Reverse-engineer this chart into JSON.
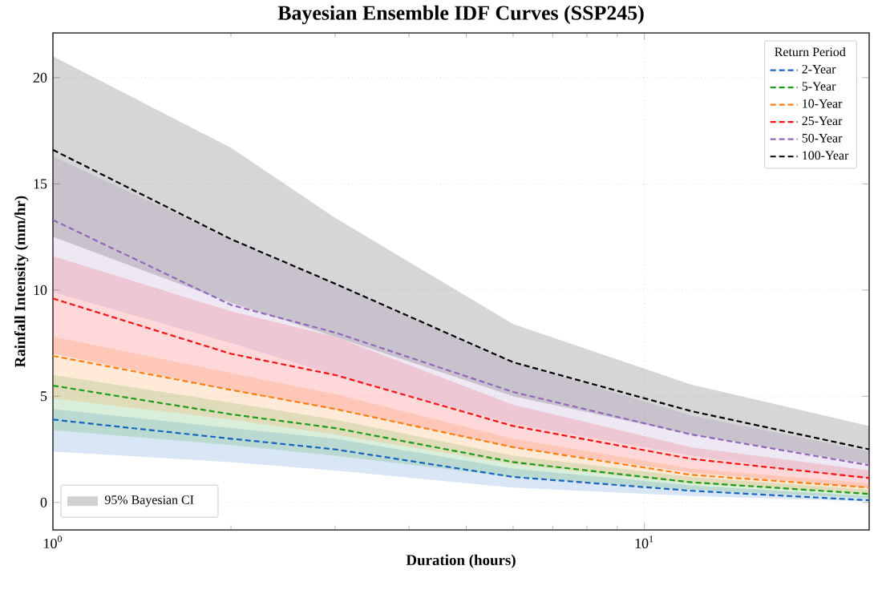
{
  "chart_data": {
    "type": "line",
    "title": "Bayesian Ensemble IDF Curves (SSP245)",
    "xlabel": "Duration (hours)",
    "ylabel": "Rainfall Intensity (mm/hr)",
    "legend_title": "Return Period",
    "log": "x",
    "grid": true,
    "legend": "top right",
    "marker": "none",
    "line_style": "dashed",
    "x": [
      1,
      2,
      3,
      6,
      12,
      24
    ],
    "xlim": [
      1,
      24
    ],
    "ylim": [
      -1.3,
      22.1
    ],
    "xticks": [
      {
        "value": 1,
        "label": "10$^{0}$"
      },
      {
        "value": 10,
        "label": "10$^{1}$"
      }
    ],
    "yticks": [
      0,
      5,
      10,
      15,
      20
    ],
    "annotations": [
      "95% Bayesian CI"
    ],
    "series": [
      {
        "name": "2-Year",
        "color": "#1565c0",
        "values": [
          3.9,
          3.0,
          2.5,
          1.2,
          0.55,
          0.1
        ],
        "lower": [
          2.4,
          1.9,
          1.5,
          0.7,
          0.3,
          0.05
        ],
        "upper": [
          4.4,
          3.5,
          3.0,
          1.6,
          0.8,
          0.3
        ]
      },
      {
        "name": "5-Year",
        "color": "#1a9e1a",
        "values": [
          5.5,
          4.15,
          3.5,
          1.9,
          0.95,
          0.4
        ],
        "lower": [
          3.4,
          2.7,
          2.2,
          1.2,
          0.6,
          0.2
        ],
        "upper": [
          6.0,
          4.7,
          3.9,
          2.2,
          1.2,
          0.6
        ]
      },
      {
        "name": "10-Year",
        "color": "#ff7f0e",
        "values": [
          6.9,
          5.3,
          4.4,
          2.6,
          1.3,
          0.7
        ],
        "lower": [
          4.9,
          3.9,
          3.2,
          1.8,
          0.9,
          0.4
        ],
        "upper": [
          7.8,
          6.1,
          5.1,
          3.0,
          1.6,
          0.9
        ]
      },
      {
        "name": "25-Year",
        "color": "#ff1010",
        "values": [
          9.6,
          7.0,
          6.0,
          3.6,
          2.05,
          1.15
        ],
        "lower": [
          7.0,
          5.3,
          4.4,
          2.6,
          1.4,
          0.7
        ],
        "upper": [
          11.6,
          9.0,
          7.8,
          4.6,
          2.6,
          1.5
        ]
      },
      {
        "name": "50-Year",
        "color": "#9467bd",
        "values": [
          13.3,
          9.3,
          8.0,
          5.2,
          3.2,
          1.75
        ],
        "lower": [
          9.9,
          7.5,
          6.0,
          3.7,
          2.2,
          1.1
        ],
        "upper": [
          16.3,
          12.4,
          10.3,
          6.6,
          4.1,
          2.4
        ]
      },
      {
        "name": "100-Year",
        "color": "#000000",
        "values": [
          16.6,
          12.4,
          10.3,
          6.6,
          4.3,
          2.5
        ],
        "lower": [
          12.5,
          9.4,
          7.8,
          5.0,
          3.2,
          1.8
        ],
        "upper": [
          21.0,
          16.7,
          13.4,
          8.4,
          5.55,
          3.6
        ]
      }
    ]
  }
}
